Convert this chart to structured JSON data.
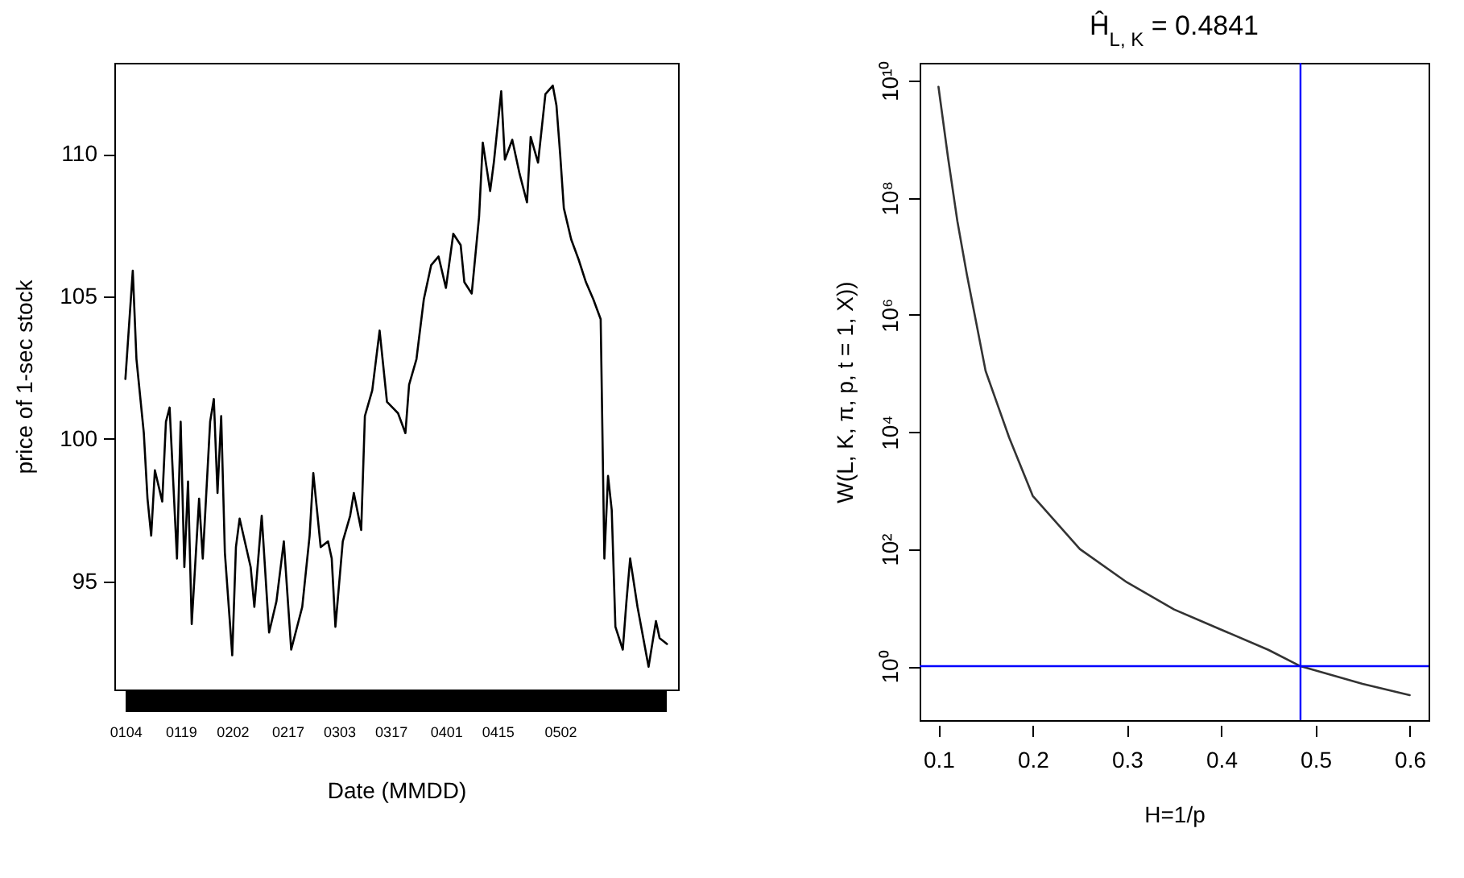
{
  "chart_data": [
    {
      "type": "line",
      "xlabel": "Date (MMDD)",
      "ylabel": "price of 1-sec stock",
      "x": [
        "--01-04",
        "--01-06",
        "--01-07",
        "--01-09",
        "--01-10",
        "--01-11",
        "--01-12",
        "--01-14",
        "--01-15",
        "--01-16",
        "--01-18",
        "--01-19",
        "--01-20",
        "--01-21",
        "--01-22",
        "--01-24",
        "--01-25",
        "--01-27",
        "--01-28",
        "--01-29",
        "--01-30",
        "--01-31",
        "--02-02",
        "--02-03",
        "--02-04",
        "--02-07",
        "--02-08",
        "--02-10",
        "--02-12",
        "--02-14",
        "--02-16",
        "--02-18",
        "--02-21",
        "--02-23",
        "--02-24",
        "--02-26",
        "--02-28",
        "--03-01",
        "--03-02",
        "--03-04",
        "--03-06",
        "--03-07",
        "--03-09",
        "--03-10",
        "--03-12",
        "--03-14",
        "--03-16",
        "--03-19",
        "--03-21",
        "--03-22",
        "--03-24",
        "--03-26",
        "--03-28",
        "--03-30",
        "--04-01",
        "--04-03",
        "--04-05",
        "--04-06",
        "--04-08",
        "--04-10",
        "--04-11",
        "--04-13",
        "--04-14",
        "--04-16",
        "--04-17",
        "--04-19",
        "--04-21",
        "--04-23",
        "--04-24",
        "--04-26",
        "--04-28",
        "--04-30",
        "--05-01",
        "--05-02",
        "--05-03",
        "--05-05",
        "--05-07",
        "--05-09",
        "--05-11",
        "--05-13",
        "--05-14",
        "--05-15",
        "--05-16",
        "--05-17",
        "--05-19",
        "--05-20",
        "--05-21",
        "--05-23",
        "--05-24",
        "--05-26",
        "--05-28",
        "--05-29",
        "--05-31"
      ],
      "series": [
        {
          "color": "#000000",
          "values": [
            102.1,
            105.9,
            102.8,
            100.2,
            97.9,
            96.6,
            98.9,
            97.8,
            100.6,
            101.1,
            95.8,
            100.6,
            95.5,
            98.5,
            93.5,
            97.9,
            95.8,
            100.6,
            101.4,
            98.1,
            100.8,
            96.0,
            92.4,
            96.2,
            97.2,
            95.5,
            94.1,
            97.3,
            93.2,
            94.3,
            96.4,
            92.6,
            94.1,
            96.6,
            98.8,
            96.2,
            96.4,
            95.8,
            93.4,
            96.4,
            97.3,
            98.1,
            96.8,
            100.8,
            101.7,
            103.8,
            101.3,
            100.9,
            100.2,
            101.9,
            102.8,
            104.9,
            106.1,
            106.4,
            105.3,
            107.2,
            106.8,
            105.5,
            105.1,
            107.8,
            110.4,
            108.7,
            109.7,
            112.2,
            109.8,
            110.5,
            109.3,
            108.3,
            110.6,
            109.7,
            112.1,
            112.4,
            111.7,
            110.0,
            108.1,
            107.0,
            106.3,
            105.5,
            104.9,
            104.2,
            95.8,
            98.7,
            97.5,
            93.4,
            92.6,
            94.3,
            95.8,
            94.1,
            93.4,
            92.0,
            93.6,
            93.0,
            92.8
          ]
        }
      ],
      "xlim": [
        "--01-01",
        "--06-03"
      ],
      "xticks": [
        {
          "value": "--01-04",
          "label": "0104"
        },
        {
          "value": "--01-19",
          "label": "0119"
        },
        {
          "value": "--02-02",
          "label": "0202"
        },
        {
          "value": "--02-17",
          "label": "0217"
        },
        {
          "value": "--03-03",
          "label": "0303"
        },
        {
          "value": "--03-17",
          "label": "0317"
        },
        {
          "value": "--04-01",
          "label": "0401"
        },
        {
          "value": "--04-15",
          "label": "0415"
        },
        {
          "value": "--05-02",
          "label": "0502"
        }
      ],
      "ylim": [
        91.2,
        113.2
      ],
      "yticks": [
        95,
        100,
        105,
        110
      ]
    },
    {
      "type": "line",
      "title": "Ĥ$_{L, K}$ = 0.4841",
      "xlabel": "H=1/p",
      "ylabel": "W(L, K, π, p, t = 1, X))",
      "log": "y",
      "x": [
        0.1,
        0.11,
        0.12,
        0.13,
        0.15,
        0.175,
        0.2,
        0.25,
        0.3,
        0.35,
        0.4,
        0.45,
        0.4841,
        0.55,
        0.6
      ],
      "series": [
        {
          "color": "#333333",
          "values": [
            7800000000.0,
            500000000.0,
            40000000.0,
            5000000.0,
            110000.0,
            8000,
            810,
            100,
            27,
            9.3,
            4.2,
            1.9,
            1,
            0.5,
            0.32
          ]
        }
      ],
      "xlim": [
        0.08,
        0.62
      ],
      "xticks": [
        0.1,
        0.2,
        0.3,
        0.4,
        0.5,
        0.6
      ],
      "ylim": [
        0.12,
        20000000000.0
      ],
      "yticks": [
        {
          "value": 1,
          "label": "10⁰"
        },
        {
          "value": 100,
          "label": "10²"
        },
        {
          "value": 10000,
          "label": "10⁴"
        },
        {
          "value": 1000000,
          "label": "10⁶"
        },
        {
          "value": 100000000,
          "label": "10⁸"
        },
        {
          "value": 10000000000,
          "label": "10¹⁰"
        }
      ],
      "ref_lines": [
        {
          "axis": "x",
          "value": 0.4841,
          "color": "#0000ff"
        },
        {
          "axis": "y",
          "value": 1,
          "color": "#0000ff"
        }
      ]
    }
  ]
}
